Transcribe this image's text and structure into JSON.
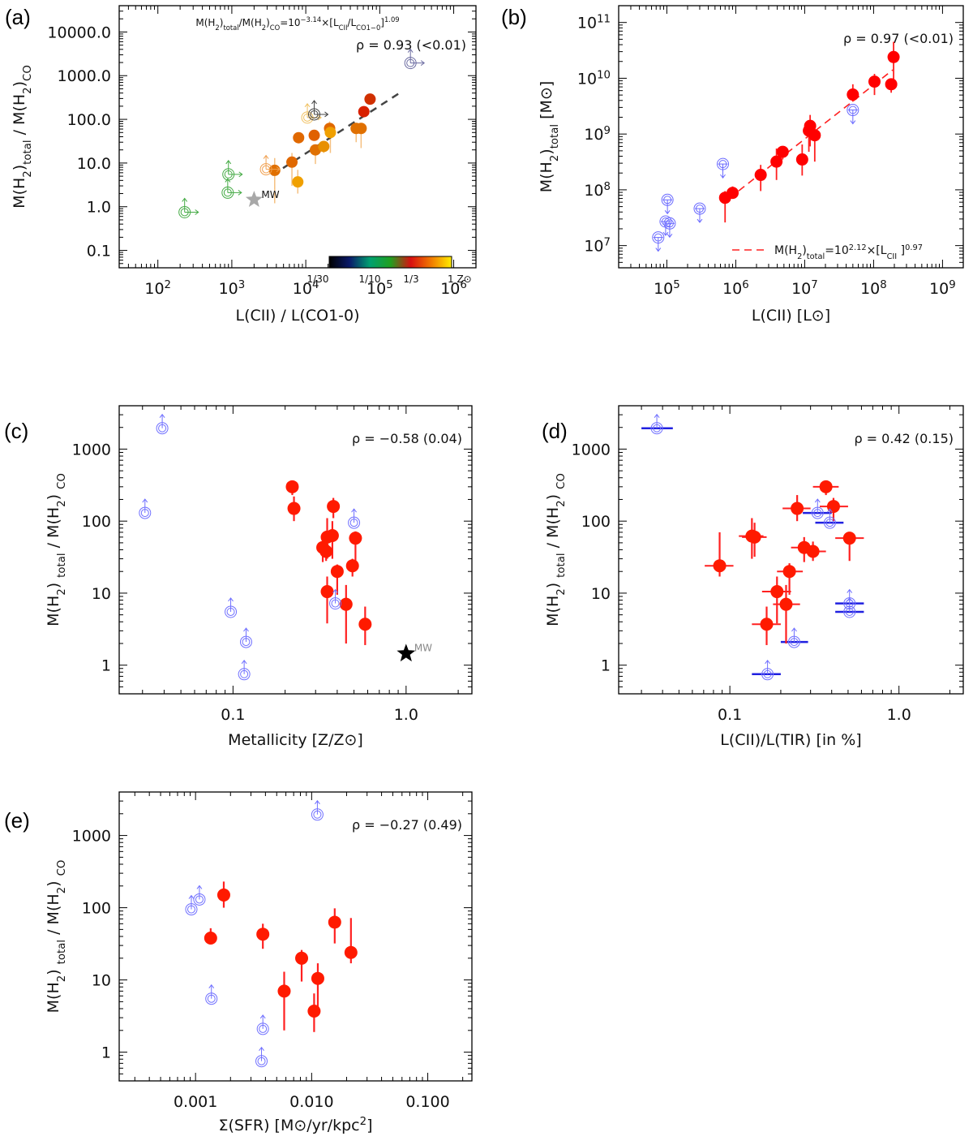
{
  "chart_data": [
    {
      "id": "a",
      "type": "scatter",
      "panel_label": "(a)",
      "title": "",
      "xlabel": "L(CII) / L(CO1-0)",
      "ylabel": "M(H2)total / M(H2)CO",
      "xscale": "log",
      "yscale": "log",
      "xlim": [
        30,
        2000000
      ],
      "ylim": [
        0.04,
        40000
      ],
      "xticks": [
        100,
        1000,
        10000,
        100000,
        1000000
      ],
      "xtick_labels": [
        "10²",
        "10³",
        "10⁴",
        "10⁵",
        "10⁶"
      ],
      "yticks": [
        0.1,
        1,
        10,
        100,
        1000,
        10000
      ],
      "ytick_labels": [
        "0.1",
        "1.0",
        "10.0",
        "100.0",
        "1000.0",
        "10000.0"
      ],
      "annotation_fit": "M(H2)total/M(H2)CO=10^-3.14×[LCII/LCO1-0]^1.09",
      "annotation_rho": "ρ = 0.93 (<0.01)",
      "fit": {
        "intercept_log": -3.14,
        "slope": 1.09,
        "x_range": [
          3500,
          200000
        ],
        "style": "dashed",
        "color": "#444444"
      },
      "colorbar": {
        "labels": [
          "1/30",
          "1/10",
          "1/3",
          "1 Z⊙"
        ],
        "stops": [
          "#000000",
          "#0a1a6a",
          "#00a070",
          "#20a020",
          "#d81010",
          "#f07a00",
          "#ffee00"
        ]
      },
      "marker_label": "MW",
      "points": [
        {
          "x": 3800,
          "y": 6.8,
          "ylo": 1.2,
          "yhi": 13,
          "color": "#e07000"
        },
        {
          "x": 6500,
          "y": 10.5,
          "ylo": 3,
          "yhi": 17,
          "color": "#e06800"
        },
        {
          "x": 7800,
          "y": 3.7,
          "ylo": 2.0,
          "yhi": 7,
          "color": "#f0a000"
        },
        {
          "x": 8000,
          "y": 38,
          "ylo": 30,
          "yhi": 48,
          "color": "#e06800"
        },
        {
          "x": 13000,
          "y": 43,
          "ylo": 35,
          "yhi": 55,
          "color": "#e06000"
        },
        {
          "x": 13500,
          "y": 20,
          "ylo": 9.5,
          "yhi": 26,
          "color": "#e07000"
        },
        {
          "x": 17500,
          "y": 24,
          "ylo": 17,
          "yhi": 30,
          "color": "#e89000"
        },
        {
          "x": 21000,
          "y": 62,
          "ylo": 40,
          "yhi": 90,
          "color": "#e06800"
        },
        {
          "x": 21500,
          "y": 50,
          "ylo": 17,
          "yhi": 70,
          "color": "#f0a000"
        },
        {
          "x": 48000,
          "y": 62,
          "ylo": 30,
          "yhi": 80,
          "color": "#e07000"
        },
        {
          "x": 56000,
          "y": 62,
          "ylo": 22,
          "yhi": 80,
          "color": "#e07000"
        },
        {
          "x": 61000,
          "y": 150,
          "ylo": 120,
          "yhi": 200,
          "color": "#d82000"
        },
        {
          "x": 74000,
          "y": 290,
          "ylo": 260,
          "yhi": 320,
          "color": "#d03000"
        }
      ],
      "limits": [
        {
          "x": 230,
          "y": 0.75,
          "color": "#44aa44"
        },
        {
          "x": 880,
          "y": 2.1,
          "color": "#44aa44"
        },
        {
          "x": 900,
          "y": 5.5,
          "color": "#44aa44"
        },
        {
          "x": 2900,
          "y": 7.2,
          "color": "#f0a050"
        },
        {
          "x": 10500,
          "y": 110,
          "color": "#f0c060"
        },
        {
          "x": 13000,
          "y": 130,
          "color": "#444444"
        },
        {
          "x": 260000,
          "y": 1950,
          "color": "#6a6aa0"
        }
      ],
      "mw": {
        "x": 2000,
        "y": 1.45,
        "color": "#a8a8a8"
      }
    },
    {
      "id": "b",
      "type": "scatter",
      "panel_label": "(b)",
      "xlabel": "L(CII)   [L⊙]",
      "ylabel": "M(H2)total   [M⊙]",
      "xscale": "log",
      "yscale": "log",
      "xlim": [
        20000,
        2000000000
      ],
      "ylim": [
        4000000,
        200000000000
      ],
      "xticks": [
        100000,
        1000000,
        10000000,
        100000000,
        1000000000
      ],
      "xtick_labels": [
        "10⁵",
        "10⁶",
        "10⁷",
        "10⁸",
        "10⁹"
      ],
      "yticks": [
        10000000,
        100000000,
        1000000000,
        10000000000,
        100000000000
      ],
      "ytick_labels": [
        "10⁷",
        "10⁸",
        "10⁹",
        "10¹⁰",
        "10¹¹"
      ],
      "annotation_rho": "ρ = 0.97 (<0.01)",
      "legend": "M(H2)total=10^2.12×[LCII]^0.97",
      "legend_position": "bottom-right",
      "fit": {
        "intercept_log": 2.12,
        "slope": 0.97,
        "x_range": [
          800000,
          190000000
        ],
        "style": "dashed",
        "color": "#ff2020"
      },
      "points": [
        {
          "x": 700000,
          "y": 72000000,
          "ylo": 26000000,
          "yhi": 95000000
        },
        {
          "x": 900000,
          "y": 88000000,
          "ylo": 70000000,
          "yhi": 115000000
        },
        {
          "x": 2300000,
          "y": 185000000,
          "ylo": 95000000,
          "yhi": 280000000
        },
        {
          "x": 3900000,
          "y": 320000000,
          "ylo": 150000000,
          "yhi": 550000000
        },
        {
          "x": 4800000,
          "y": 480000000,
          "ylo": 350000000,
          "yhi": 550000000
        },
        {
          "x": 9200000,
          "y": 350000000,
          "ylo": 180000000,
          "yhi": 650000000
        },
        {
          "x": 11500000,
          "y": 1150000000,
          "ylo": 480000000,
          "yhi": 1600000000
        },
        {
          "x": 12000000,
          "y": 1400000000,
          "ylo": 600000000,
          "yhi": 2200000000
        },
        {
          "x": 14000000,
          "y": 950000000,
          "ylo": 320000000,
          "yhi": 1250000000
        },
        {
          "x": 50000000,
          "y": 5100000000,
          "ylo": 3800000000,
          "yhi": 7800000000
        },
        {
          "x": 103000000,
          "y": 8700000000,
          "ylo": 5000000000,
          "yhi": 12000000000
        },
        {
          "x": 180000000,
          "y": 7800000000,
          "ylo": 5500000000,
          "yhi": 9500000000
        },
        {
          "x": 195000000,
          "y": 24000000000,
          "ylo": 7000000000,
          "yhi": 45000000000
        }
      ],
      "limits": [
        {
          "x": 75000,
          "y": 14000000
        },
        {
          "x": 96000,
          "y": 27000000
        },
        {
          "x": 110000,
          "y": 25000000
        },
        {
          "x": 102000,
          "y": 66000000
        },
        {
          "x": 300000,
          "y": 46000000
        },
        {
          "x": 650000,
          "y": 290000000
        },
        {
          "x": 50000000,
          "y": 2700000000
        }
      ]
    },
    {
      "id": "c",
      "type": "scatter",
      "panel_label": "(c)",
      "xlabel": "Metallicity [Z/Z⊙]",
      "ylabel": "M(H2) total / M(H2) CO",
      "xscale": "log",
      "yscale": "log",
      "xlim": [
        0.022,
        2.4
      ],
      "ylim": [
        0.4,
        4000
      ],
      "xticks": [
        0.1,
        1.0
      ],
      "xtick_labels": [
        "0.1",
        "1.0"
      ],
      "yticks": [
        1,
        10,
        100,
        1000
      ],
      "ytick_labels": [
        "1",
        "10",
        "100",
        "1000"
      ],
      "annotation_rho": "ρ = −0.58 (0.04)",
      "marker_label": "MW",
      "points": [
        {
          "x": 0.22,
          "y": 300,
          "ylo": 230,
          "yhi": 350
        },
        {
          "x": 0.225,
          "y": 150,
          "ylo": 100,
          "yhi": 220
        },
        {
          "x": 0.33,
          "y": 43,
          "ylo": 27,
          "yhi": 55
        },
        {
          "x": 0.345,
          "y": 38,
          "ylo": 28,
          "yhi": 62
        },
        {
          "x": 0.35,
          "y": 60,
          "ylo": 30,
          "yhi": 110
        },
        {
          "x": 0.375,
          "y": 63,
          "ylo": 30,
          "yhi": 100
        },
        {
          "x": 0.38,
          "y": 160,
          "ylo": 110,
          "yhi": 210
        },
        {
          "x": 0.35,
          "y": 10.5,
          "ylo": 3.8,
          "yhi": 17
        },
        {
          "x": 0.4,
          "y": 20,
          "ylo": 9.5,
          "yhi": 25
        },
        {
          "x": 0.45,
          "y": 7.0,
          "ylo": 2.0,
          "yhi": 13
        },
        {
          "x": 0.49,
          "y": 24,
          "ylo": 17,
          "yhi": 30
        },
        {
          "x": 0.51,
          "y": 58,
          "ylo": 24,
          "yhi": 72
        },
        {
          "x": 0.58,
          "y": 3.7,
          "ylo": 1.9,
          "yhi": 6.5
        }
      ],
      "limits": [
        {
          "x": 0.031,
          "y": 130
        },
        {
          "x": 0.039,
          "y": 1950
        },
        {
          "x": 0.097,
          "y": 5.5
        },
        {
          "x": 0.116,
          "y": 0.75
        },
        {
          "x": 0.119,
          "y": 2.1
        },
        {
          "x": 0.39,
          "y": 7.2
        },
        {
          "x": 0.5,
          "y": 95
        }
      ],
      "mw": {
        "x": 1.0,
        "y": 1.45,
        "color": "#000000"
      }
    },
    {
      "id": "d",
      "type": "scatter",
      "panel_label": "(d)",
      "xlabel": "L(CII)/L(TIR)   [in %]",
      "ylabel": "M(H2) total / M(H2) CO",
      "xscale": "log",
      "yscale": "log",
      "xlim": [
        0.022,
        2.4
      ],
      "ylim": [
        0.4,
        4000
      ],
      "xticks": [
        0.1,
        1.0
      ],
      "xtick_labels": [
        "0.1",
        "1.0"
      ],
      "yticks": [
        1,
        10,
        100,
        1000
      ],
      "ytick_labels": [
        "1",
        "10",
        "100",
        "1000"
      ],
      "annotation_rho": "ρ = 0.42 (0.15)",
      "points": [
        {
          "x": 0.087,
          "y": 24,
          "xlo": 0.071,
          "xhi": 0.105,
          "ylo": 17,
          "yhi": 70
        },
        {
          "x": 0.135,
          "y": 62,
          "xlo": 0.113,
          "xhi": 0.158,
          "ylo": 30,
          "yhi": 110
        },
        {
          "x": 0.14,
          "y": 60,
          "xlo": 0.118,
          "xhi": 0.165,
          "ylo": 32,
          "yhi": 95
        },
        {
          "x": 0.165,
          "y": 3.7,
          "xlo": 0.135,
          "xhi": 0.2,
          "ylo": 1.9,
          "yhi": 6.5
        },
        {
          "x": 0.19,
          "y": 10.5,
          "xlo": 0.155,
          "xhi": 0.23,
          "ylo": 3.8,
          "yhi": 17
        },
        {
          "x": 0.215,
          "y": 7.0,
          "xlo": 0.18,
          "xhi": 0.26,
          "ylo": 2.0,
          "yhi": 13
        },
        {
          "x": 0.225,
          "y": 20,
          "xlo": 0.19,
          "xhi": 0.27,
          "ylo": 9.5,
          "yhi": 26
        },
        {
          "x": 0.25,
          "y": 150,
          "xlo": 0.205,
          "xhi": 0.3,
          "ylo": 100,
          "yhi": 230
        },
        {
          "x": 0.275,
          "y": 43,
          "xlo": 0.23,
          "xhi": 0.33,
          "ylo": 27,
          "yhi": 60
        },
        {
          "x": 0.31,
          "y": 38,
          "xlo": 0.26,
          "xhi": 0.37,
          "ylo": 28,
          "yhi": 52
        },
        {
          "x": 0.37,
          "y": 300,
          "xlo": 0.31,
          "xhi": 0.44,
          "ylo": 230,
          "yhi": 350
        },
        {
          "x": 0.41,
          "y": 160,
          "xlo": 0.34,
          "xhi": 0.5,
          "ylo": 100,
          "yhi": 210
        },
        {
          "x": 0.51,
          "y": 58,
          "xlo": 0.42,
          "xhi": 0.62,
          "ylo": 28,
          "yhi": 70
        }
      ],
      "limits": [
        {
          "x": 0.037,
          "y": 1950,
          "xlo": 0.03,
          "xhi": 0.046
        },
        {
          "x": 0.167,
          "y": 0.75,
          "xlo": 0.135,
          "xhi": 0.2
        },
        {
          "x": 0.24,
          "y": 2.1,
          "xlo": 0.2,
          "xhi": 0.29
        },
        {
          "x": 0.33,
          "y": 130,
          "xlo": 0.27,
          "xhi": 0.4
        },
        {
          "x": 0.39,
          "y": 95,
          "xlo": 0.32,
          "xhi": 0.47
        },
        {
          "x": 0.51,
          "y": 7.2,
          "xlo": 0.42,
          "xhi": 0.62
        },
        {
          "x": 0.51,
          "y": 5.5,
          "xlo": 0.42,
          "xhi": 0.62
        }
      ]
    },
    {
      "id": "e",
      "type": "scatter",
      "panel_label": "(e)",
      "xlabel": "Σ(SFR)   [M⊙/yr/kpc²]",
      "ylabel": "M(H2) total / M(H2) CO",
      "xscale": "log",
      "yscale": "log",
      "xlim": [
        0.00022,
        0.24
      ],
      "ylim": [
        0.4,
        4000
      ],
      "xticks": [
        0.001,
        0.01,
        0.1
      ],
      "xtick_labels": [
        "0.001",
        "0.010",
        "0.100"
      ],
      "yticks": [
        1,
        10,
        100,
        1000
      ],
      "ytick_labels": [
        "1",
        "10",
        "100",
        "1000"
      ],
      "annotation_rho": "ρ = −0.27 (0.49)",
      "points": [
        {
          "x": 0.00135,
          "y": 38,
          "ylo": 38,
          "yhi": 52
        },
        {
          "x": 0.00175,
          "y": 150,
          "ylo": 100,
          "yhi": 230
        },
        {
          "x": 0.0038,
          "y": 43,
          "ylo": 27,
          "yhi": 60
        },
        {
          "x": 0.0058,
          "y": 7.0,
          "ylo": 2.0,
          "yhi": 13
        },
        {
          "x": 0.0082,
          "y": 20,
          "ylo": 9.5,
          "yhi": 26
        },
        {
          "x": 0.0105,
          "y": 3.7,
          "ylo": 1.9,
          "yhi": 6.5
        },
        {
          "x": 0.0113,
          "y": 10.5,
          "ylo": 3.8,
          "yhi": 17
        },
        {
          "x": 0.0158,
          "y": 63,
          "ylo": 32,
          "yhi": 98
        },
        {
          "x": 0.0218,
          "y": 24,
          "ylo": 17,
          "yhi": 72
        }
      ],
      "limits": [
        {
          "x": 0.00092,
          "y": 95
        },
        {
          "x": 0.00108,
          "y": 130
        },
        {
          "x": 0.00137,
          "y": 5.5
        },
        {
          "x": 0.0038,
          "y": 2.1
        },
        {
          "x": 0.0037,
          "y": 0.75
        },
        {
          "x": 0.0112,
          "y": 1950
        }
      ]
    }
  ]
}
